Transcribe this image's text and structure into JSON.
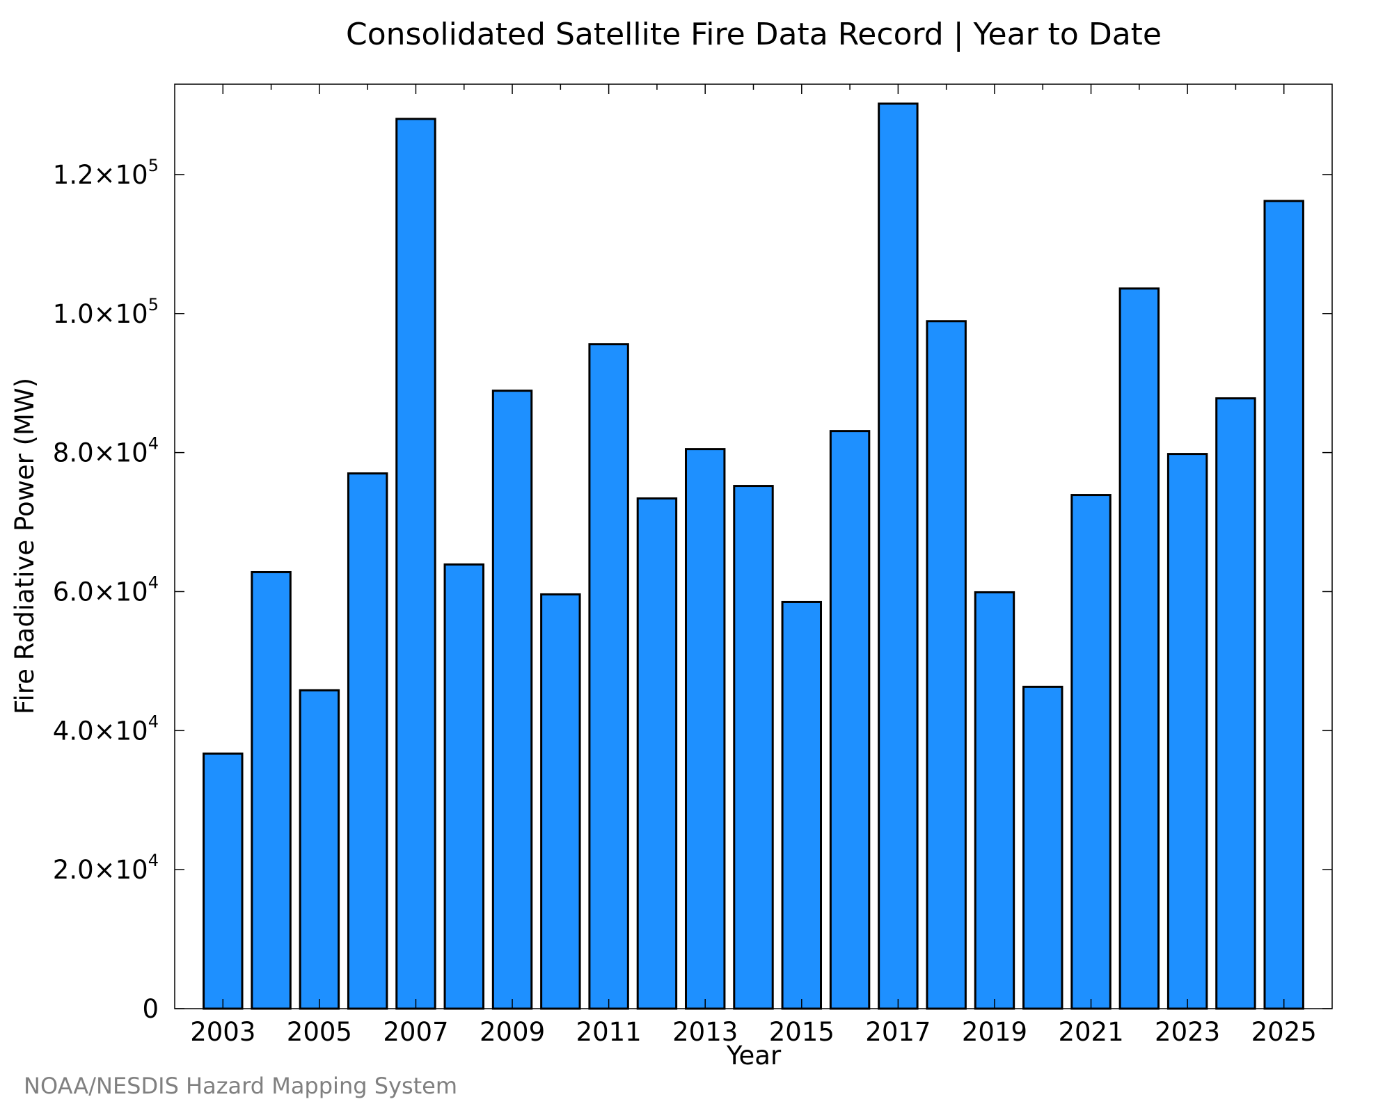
{
  "colors": {
    "bar_fill": "#1e90ff",
    "bar_edge": "#000000",
    "source_text": "#808080"
  },
  "source_note": "NOAA/NESDIS Hazard Mapping System",
  "chart_data": {
    "type": "bar",
    "title": "Consolidated Satellite Fire Data Record | Year to Date",
    "xlabel": "Year",
    "ylabel": "Fire Radiative Power (MW)",
    "categories": [
      "2003",
      "2004",
      "2005",
      "2006",
      "2007",
      "2008",
      "2009",
      "2010",
      "2011",
      "2012",
      "2013",
      "2014",
      "2015",
      "2016",
      "2017",
      "2018",
      "2019",
      "2020",
      "2021",
      "2022",
      "2023",
      "2024",
      "2025"
    ],
    "values": [
      36700,
      62800,
      45800,
      77000,
      128000,
      63900,
      88900,
      59600,
      95600,
      73400,
      80500,
      75200,
      58500,
      83100,
      130200,
      98900,
      59900,
      46300,
      73900,
      103600,
      79800,
      87800,
      116200
    ],
    "ylim": [
      0,
      133000
    ],
    "xlim": [
      2002.0,
      2026.0
    ],
    "x_tick_labels": [
      "2003",
      "2005",
      "2007",
      "2009",
      "2011",
      "2013",
      "2015",
      "2017",
      "2019",
      "2021",
      "2023",
      "2025"
    ],
    "x_tick_values": [
      2003,
      2005,
      2007,
      2009,
      2011,
      2013,
      2015,
      2017,
      2019,
      2021,
      2023,
      2025
    ],
    "x_minor_ticks": [
      2004,
      2006,
      2008,
      2010,
      2012,
      2014,
      2016,
      2018,
      2020,
      2022,
      2024
    ],
    "y_ticks": [
      {
        "value": 0,
        "label": "0",
        "exp": ""
      },
      {
        "value": 20000,
        "label": "2.0×10",
        "exp": "4"
      },
      {
        "value": 40000,
        "label": "4.0×10",
        "exp": "4"
      },
      {
        "value": 60000,
        "label": "6.0×10",
        "exp": "4"
      },
      {
        "value": 80000,
        "label": "8.0×10",
        "exp": "4"
      },
      {
        "value": 100000,
        "label": "1.0×10",
        "exp": "5"
      },
      {
        "value": 120000,
        "label": "1.2×10",
        "exp": "5"
      }
    ],
    "grid": false,
    "legend": "none"
  }
}
